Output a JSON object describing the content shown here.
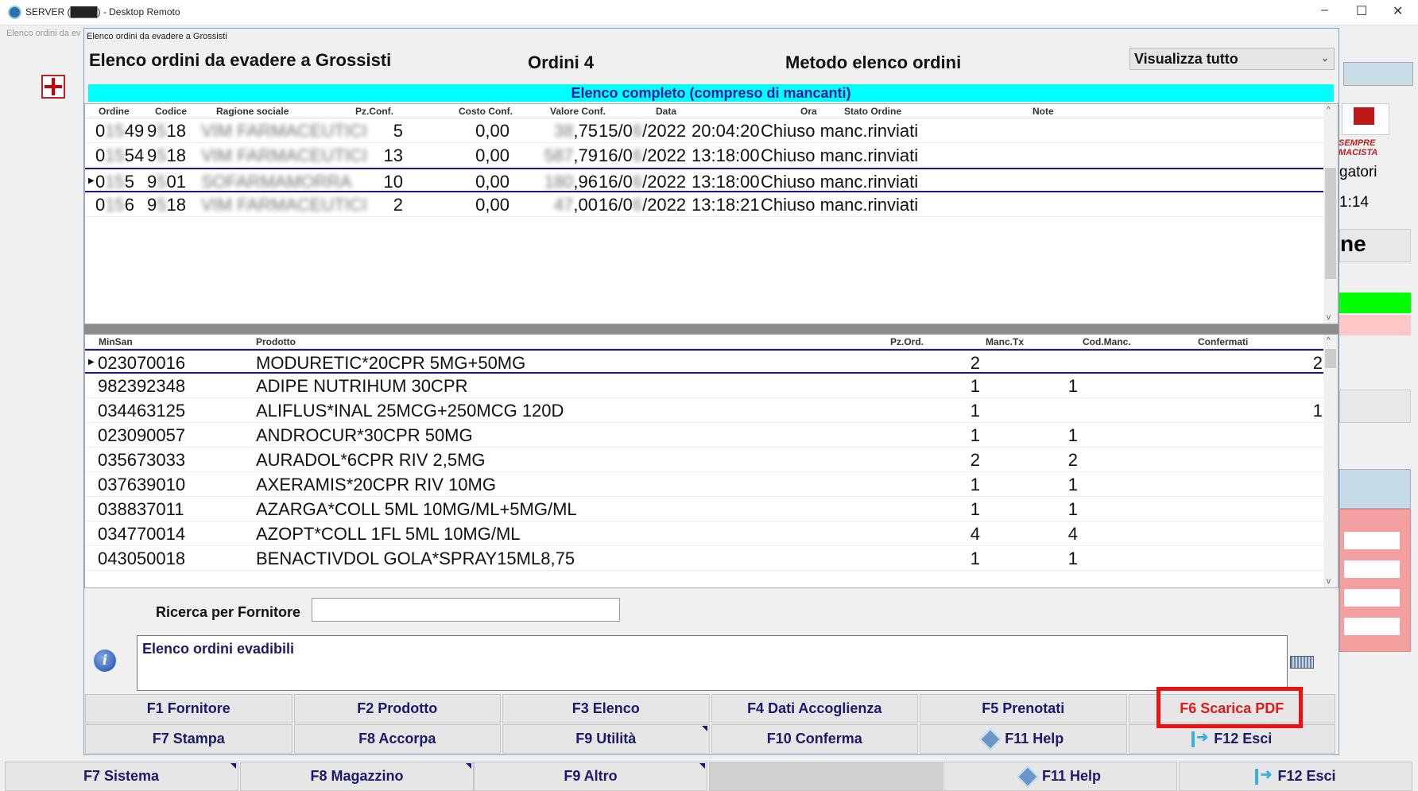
{
  "window": {
    "title": "SERVER (████) - Desktop Remoto",
    "minimize": "–",
    "maximize": "☐",
    "close": "✕"
  },
  "background_app": {
    "tab_label": "Elenco ordini da ev",
    "right_text_1": "gatori",
    "right_text_2": "1:14",
    "right_text_3": "ne",
    "logo_text": "SEMPRE MACISTA"
  },
  "dialog": {
    "title": "Elenco ordini da evadere a Grossisti",
    "heading": "Elenco ordini da evadere a Grossisti",
    "orders_count": "Ordini 4",
    "method_label": "Metodo elenco ordini",
    "method_select": "Visualizza tutto",
    "banner": "Elenco completo (compreso di mancanti)",
    "orders": {
      "columns": [
        "Ordine",
        "Codice",
        "Ragione sociale",
        "Pz.Conf.",
        "Costo Conf.",
        "Valore Conf.",
        "Data",
        "Ora",
        "Stato Ordine",
        "Note"
      ],
      "rows": [
        {
          "ordine": [
            "0",
            "15",
            "49"
          ],
          "codice": [
            "9",
            "5",
            "18"
          ],
          "ragione": "VIM FARMACEUTICI",
          "pz": "5",
          "costo": "0,00",
          "valore": [
            "38",
            ",75"
          ],
          "data": [
            "15/0",
            "6",
            "/2022"
          ],
          "ora": "20:04:20",
          "stato": "Chiuso manc.rinviati",
          "note": "",
          "selected": false
        },
        {
          "ordine": [
            "0",
            "15",
            "54"
          ],
          "codice": [
            "9",
            "5",
            "18"
          ],
          "ragione": "VIM FARMACEUTICI",
          "pz": "13",
          "costo": "0,00",
          "valore": [
            "587",
            ",79"
          ],
          "data": [
            "16/0",
            "6",
            "/2022"
          ],
          "ora": "13:18:00",
          "stato": "Chiuso manc.rinviati",
          "note": "",
          "selected": false
        },
        {
          "ordine": [
            "0",
            "15",
            "5"
          ],
          "codice": [
            "9",
            "5",
            "01"
          ],
          "ragione": "SOFARMAMORRA",
          "pz": "10",
          "costo": "0,00",
          "valore": [
            "180",
            ",96"
          ],
          "data": [
            "16/0",
            "6",
            "/2022"
          ],
          "ora": "13:18:00",
          "stato": "Chiuso manc.rinviati",
          "note": "",
          "selected": true
        },
        {
          "ordine": [
            "0",
            "15",
            "6"
          ],
          "codice": [
            "9",
            "5",
            "18"
          ],
          "ragione": "VIM FARMACEUTICI",
          "pz": "2",
          "costo": "0,00",
          "valore": [
            "47",
            ",00"
          ],
          "data": [
            "16/0",
            "6",
            "/2022"
          ],
          "ora": "13:18:21",
          "stato": "Chiuso manc.rinviati",
          "note": "",
          "selected": false
        }
      ]
    },
    "products": {
      "columns": [
        "MinSan",
        "Prodotto",
        "Pz.Ord.",
        "Manc.Tx",
        "Cod.Manc.",
        "Confermati"
      ],
      "rows": [
        {
          "minsan": "023070016",
          "prodotto": "MODURETIC*20CPR 5MG+50MG",
          "pz": "2",
          "manc": "",
          "cod": "",
          "conf": "2",
          "selected": true
        },
        {
          "minsan": "982392348",
          "prodotto": "ADIPE NUTRIHUM 30CPR",
          "pz": "1",
          "manc": "1",
          "cod": "",
          "conf": ""
        },
        {
          "minsan": "034463125",
          "prodotto": "ALIFLUS*INAL 25MCG+250MCG 120D",
          "pz": "1",
          "manc": "",
          "cod": "",
          "conf": "1"
        },
        {
          "minsan": "023090057",
          "prodotto": "ANDROCUR*30CPR 50MG",
          "pz": "1",
          "manc": "1",
          "cod": "",
          "conf": ""
        },
        {
          "minsan": "035673033",
          "prodotto": "AURADOL*6CPR RIV 2,5MG",
          "pz": "2",
          "manc": "2",
          "cod": "",
          "conf": ""
        },
        {
          "minsan": "037639010",
          "prodotto": "AXERAMIS*20CPR RIV 10MG",
          "pz": "1",
          "manc": "1",
          "cod": "",
          "conf": ""
        },
        {
          "minsan": "038837011",
          "prodotto": "AZARGA*COLL 5ML 10MG/ML+5MG/ML",
          "pz": "1",
          "manc": "1",
          "cod": "",
          "conf": ""
        },
        {
          "minsan": "034770014",
          "prodotto": "AZOPT*COLL 1FL 5ML 10MG/ML",
          "pz": "4",
          "manc": "4",
          "cod": "",
          "conf": ""
        },
        {
          "minsan": "043050018",
          "prodotto": "BENACTIVDOL GOLA*SPRAY15ML8,75",
          "pz": "1",
          "manc": "1",
          "cod": "",
          "conf": ""
        }
      ]
    },
    "search": {
      "label": "Ricerca per Fornitore",
      "value": ""
    },
    "message": "Elenco ordini evadibili",
    "buttons_row1": [
      "F1 Fornitore",
      "F2 Prodotto",
      "F3 Elenco",
      "F4 Dati Accoglienza",
      "F5 Prenotati",
      "F6 Scarica PDF"
    ],
    "buttons_row2": [
      "F7 Stampa",
      "F8 Accorpa",
      "F9 Utilità",
      "F10 Conferma",
      "F11 Help",
      "F12 Esci"
    ],
    "highlight_color": "#ee1111"
  },
  "bottom_bar": [
    "F7 Sistema",
    "F8 Magazzino",
    "F9 Altro",
    "",
    "F11 Help",
    "F12 Esci"
  ]
}
